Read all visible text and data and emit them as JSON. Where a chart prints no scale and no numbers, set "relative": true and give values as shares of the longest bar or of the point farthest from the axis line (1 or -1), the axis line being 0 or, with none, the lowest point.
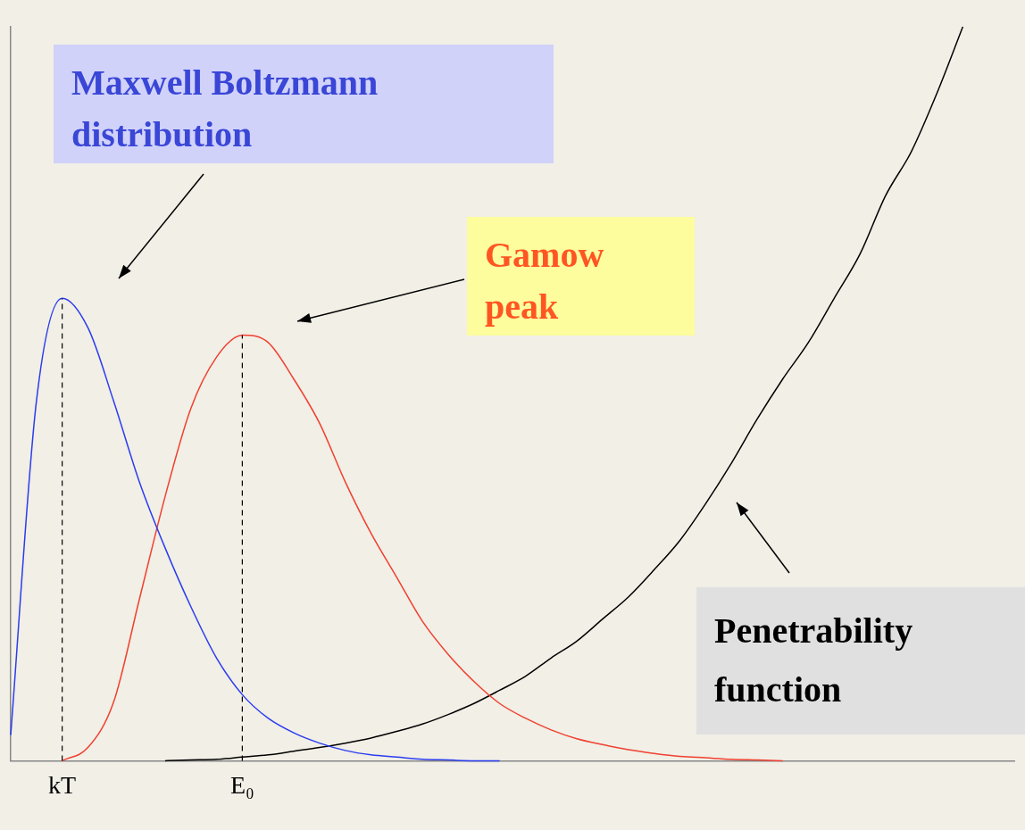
{
  "chart_data": {
    "type": "line",
    "relative": true,
    "grid": false,
    "legend": false,
    "marker": "none",
    "line_style": "solid",
    "categories": [
      null,
      null,
      "kT",
      null,
      null,
      null,
      null,
      null,
      null,
      "E₀",
      null,
      null,
      null,
      null,
      null,
      null,
      null,
      null,
      null,
      null,
      null,
      null,
      null,
      null,
      null,
      null,
      null,
      null,
      null,
      null,
      null,
      null,
      null,
      null,
      null,
      null,
      null,
      null,
      null,
      null
    ],
    "series": [
      {
        "color": "#2b3cf0",
        "values": [
          0.035,
          0.49,
          0.63,
          0.59,
          0.49,
          0.38,
          0.29,
          0.21,
          0.14,
          0.09,
          0.058,
          0.038,
          0.024,
          0.014,
          0.008,
          0.005,
          0.002,
          0.001,
          0,
          0,
          null,
          null,
          null,
          null,
          null,
          null,
          null,
          null,
          null,
          null,
          null,
          null,
          null,
          null,
          null,
          null,
          null,
          null,
          null,
          null
        ]
      },
      {
        "color": "#f04030",
        "values": [
          null,
          null,
          0,
          0.018,
          0.08,
          0.22,
          0.36,
          0.48,
          0.55,
          0.58,
          0.57,
          0.52,
          0.46,
          0.38,
          0.31,
          0.25,
          0.19,
          0.145,
          0.108,
          0.078,
          0.058,
          0.042,
          0.03,
          0.022,
          0.015,
          0.01,
          0.006,
          0.004,
          0.002,
          0.001,
          0,
          null,
          null,
          null,
          null,
          null,
          null,
          null,
          null,
          null
        ]
      },
      {
        "color": "#000000",
        "values": [
          null,
          null,
          null,
          null,
          null,
          null,
          0,
          0.001,
          0.002,
          0.005,
          0.008,
          0.013,
          0.018,
          0.024,
          0.031,
          0.04,
          0.05,
          0.063,
          0.078,
          0.096,
          0.115,
          0.14,
          0.163,
          0.193,
          0.223,
          0.26,
          0.3,
          0.35,
          0.405,
          0.465,
          0.52,
          0.57,
          0.63,
          0.69,
          0.77,
          0.83,
          0.91,
          1,
          null,
          null
        ]
      }
    ],
    "ref_lines": [
      {
        "axis": "x",
        "value": "kT",
        "line_style": "dashed",
        "color": "#000000"
      },
      {
        "axis": "x",
        "value": "E₀",
        "line_style": "dashed",
        "color": "#000000"
      }
    ],
    "annotations": [
      "Maxwell Boltzmann distribution",
      "Gamow peak",
      "Penetrability function"
    ]
  }
}
